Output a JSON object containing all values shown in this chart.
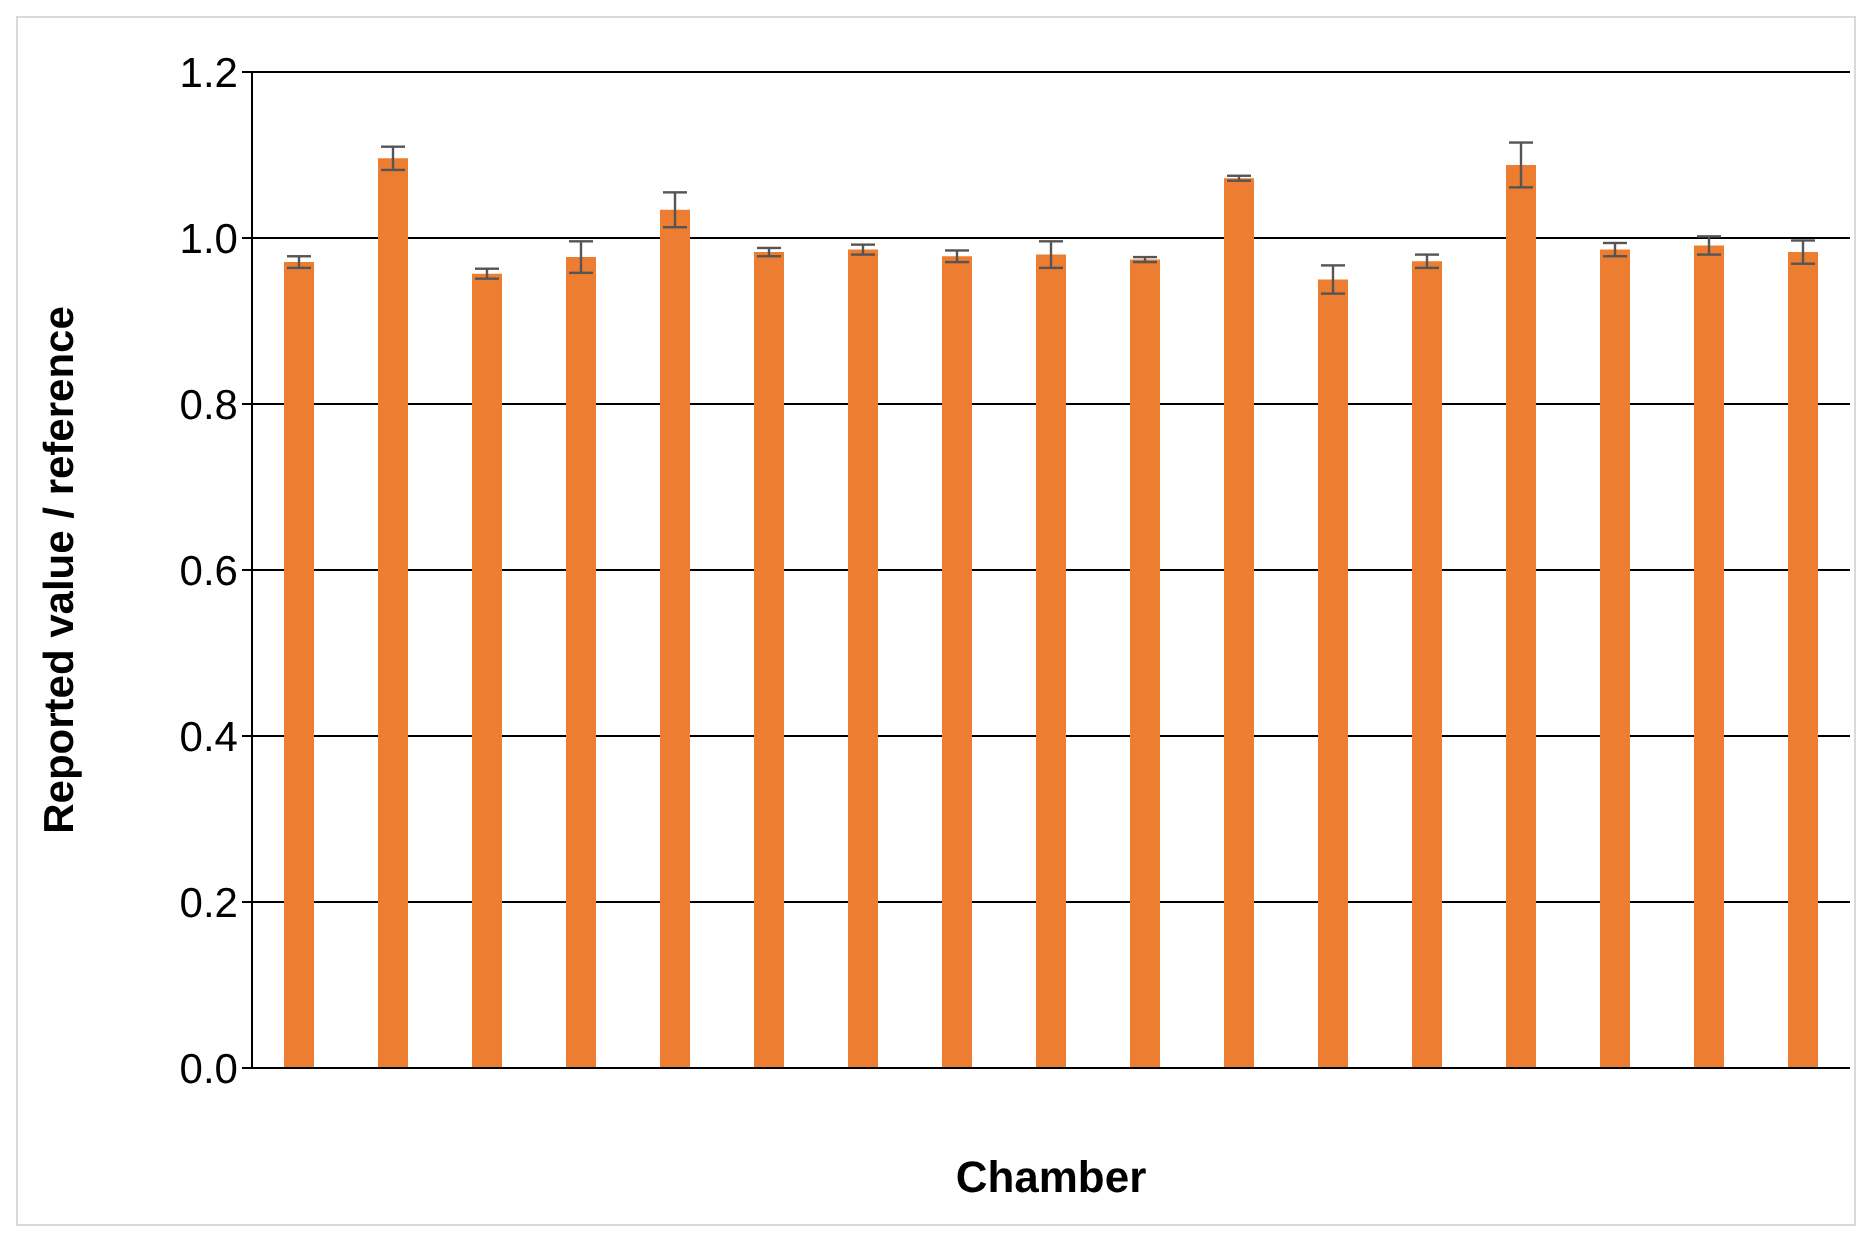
{
  "chart_data": {
    "type": "bar",
    "xlabel": "Chamber",
    "ylabel": "Reported value / reference",
    "categories": [
      null,
      null,
      null,
      null,
      null,
      null,
      null,
      null,
      null,
      null,
      null,
      null,
      null,
      null,
      null,
      null,
      null
    ],
    "values": [
      0.971,
      1.096,
      0.957,
      0.977,
      1.034,
      0.983,
      0.986,
      0.978,
      0.98,
      0.974,
      1.072,
      0.95,
      0.972,
      1.088,
      0.986,
      0.991,
      0.983
    ],
    "errors": [
      0.007,
      0.014,
      0.006,
      0.019,
      0.021,
      0.005,
      0.006,
      0.007,
      0.016,
      0.003,
      0.003,
      0.017,
      0.008,
      0.027,
      0.008,
      0.011,
      0.014
    ],
    "color": "#ed7d31",
    "ylim": [
      0,
      1.2
    ],
    "yticks": [
      {
        "value": 0,
        "label": "0.0"
      },
      {
        "value": 0.2,
        "label": "0.2"
      },
      {
        "value": 0.4,
        "label": "0.4"
      },
      {
        "value": 0.6,
        "label": "0.6"
      },
      {
        "value": 0.8,
        "label": "0.8"
      },
      {
        "value": 1,
        "label": "1.0"
      },
      {
        "value": 1.2,
        "label": "1.2"
      }
    ],
    "grid": "y"
  }
}
